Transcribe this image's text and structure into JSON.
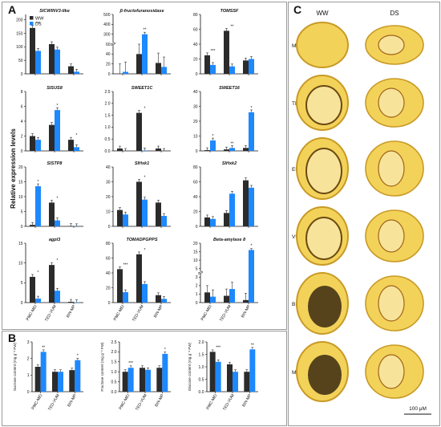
{
  "panel_labels": {
    "a": "A",
    "b": "B",
    "c": "C"
  },
  "legend": {
    "ww": "WW",
    "ds": "DS"
  },
  "colors": {
    "ww": "#2b2b2b",
    "ds": "#1e88ff",
    "tissue_dark": "#3a2a10",
    "tissue_mid": "#c89a25",
    "tissue_light": "#f3d25a",
    "tissue_pale": "#f7e49a"
  },
  "panel_a_ylabel": "Relative expression levels",
  "categories": [
    "PMC-MEI",
    "TED-VUM",
    "BIN-MP"
  ],
  "chart_data": [
    {
      "type": "bar",
      "title": "SlCWINV3-like",
      "categories": [
        "PMC-MEI",
        "TED-VUM",
        "BIN-MP"
      ],
      "series": [
        {
          "name": "WW",
          "values": [
            170,
            110,
            28
          ]
        },
        {
          "name": "DS",
          "values": [
            85,
            90,
            8
          ]
        }
      ],
      "ylim": [
        0,
        220
      ],
      "yticks": [
        0,
        50,
        100,
        150,
        200
      ],
      "sig": [
        "***",
        "",
        ""
      ]
    },
    {
      "type": "bar",
      "title": "β-fructofuranosidase",
      "categories": [
        "PMC-MEI",
        "TED-VUM",
        "BIN-MP"
      ],
      "series": [
        {
          "name": "WW",
          "values": [
            0,
            40,
            22
          ]
        },
        {
          "name": "DS",
          "values": [
            4,
            300,
            14
          ]
        }
      ],
      "ylim": [
        0,
        500
      ],
      "yticks": [
        0,
        20,
        40,
        60,
        300,
        400,
        500
      ],
      "broken_axis": true,
      "sig": [
        "",
        "**",
        ""
      ]
    },
    {
      "type": "bar",
      "title": "TOMSSF",
      "categories": [
        "PMC-MEI",
        "TED-VUM",
        "BIN-MP"
      ],
      "series": [
        {
          "name": "WW",
          "values": [
            25,
            58,
            18
          ]
        },
        {
          "name": "DS",
          "values": [
            12,
            10,
            20
          ]
        }
      ],
      "ylim": [
        0,
        80
      ],
      "yticks": [
        0,
        20,
        40,
        60,
        80
      ],
      "sig": [
        "***",
        "**",
        ""
      ]
    },
    {
      "type": "bar",
      "title": "SlSUS8",
      "categories": [
        "PMC-MEI",
        "TED-VUM",
        "BIN-MP"
      ],
      "series": [
        {
          "name": "WW",
          "values": [
            2.0,
            3.5,
            1.5
          ]
        },
        {
          "name": "DS",
          "values": [
            1.5,
            5.5,
            0.5
          ]
        }
      ],
      "ylim": [
        0,
        8
      ],
      "yticks": [
        0,
        2,
        4,
        6,
        8
      ],
      "sig": [
        "",
        "*",
        "*"
      ]
    },
    {
      "type": "bar",
      "title": "SWEET1C",
      "categories": [
        "PMC-MEI",
        "TED-VUM",
        "BIN-MP"
      ],
      "series": [
        {
          "name": "WW",
          "values": [
            0.1,
            1.6,
            0.1
          ]
        },
        {
          "name": "DS",
          "values": [
            0.0,
            0.02,
            0.0
          ]
        }
      ],
      "ylim": [
        0,
        2.5
      ],
      "yticks": [
        0.0,
        0.5,
        1.0,
        1.5,
        2.0,
        2.5
      ],
      "sig": [
        "",
        "*",
        ""
      ]
    },
    {
      "type": "bar",
      "title": "SWEET16",
      "categories": [
        "PMC-MEI",
        "TED-VUM",
        "BIN-MP"
      ],
      "series": [
        {
          "name": "WW",
          "values": [
            0.5,
            1.0,
            2.0
          ]
        },
        {
          "name": "DS",
          "values": [
            7.0,
            2.0,
            26.0
          ]
        }
      ],
      "ylim": [
        0,
        40
      ],
      "yticks": [
        0,
        10,
        20,
        30,
        40
      ],
      "sig": [
        "*",
        "**",
        "*"
      ]
    },
    {
      "type": "bar",
      "title": "SlSTP8",
      "categories": [
        "PMC-MEI",
        "TED-VUM",
        "BIN-MP"
      ],
      "series": [
        {
          "name": "WW",
          "values": [
            0.5,
            8.0,
            0.1
          ]
        },
        {
          "name": "DS",
          "values": [
            13.5,
            2.0,
            0.05
          ]
        }
      ],
      "ylim": [
        0,
        20
      ],
      "yticks": [
        0,
        5,
        10,
        15,
        20
      ],
      "sig": [
        "*",
        "*",
        ""
      ]
    },
    {
      "type": "bar",
      "title": "SlHxk1",
      "categories": [
        "PMC-MEI",
        "TED-VUM",
        "BIN-MP"
      ],
      "series": [
        {
          "name": "WW",
          "values": [
            11,
            30,
            16
          ]
        },
        {
          "name": "DS",
          "values": [
            8,
            18,
            7
          ]
        }
      ],
      "ylim": [
        0,
        40
      ],
      "yticks": [
        0,
        10,
        20,
        30,
        40
      ],
      "sig": [
        "",
        "*",
        ""
      ]
    },
    {
      "type": "bar",
      "title": "SlHxk2",
      "categories": [
        "PMC-MEI",
        "TED-VUM",
        "BIN-MP"
      ],
      "series": [
        {
          "name": "WW",
          "values": [
            12,
            18,
            62
          ]
        },
        {
          "name": "DS",
          "values": [
            10,
            44,
            52
          ]
        }
      ],
      "ylim": [
        0,
        80
      ],
      "yticks": [
        0,
        20,
        40,
        60,
        80
      ],
      "sig": [
        "",
        "",
        ""
      ]
    },
    {
      "type": "bar",
      "title": "agpl3",
      "categories": [
        "PMC-MEI",
        "TED-VUM",
        "BIN-MP"
      ],
      "series": [
        {
          "name": "WW",
          "values": [
            6.5,
            9.5,
            0.2
          ]
        },
        {
          "name": "DS",
          "values": [
            1.0,
            3.0,
            0.1
          ]
        }
      ],
      "ylim": [
        0,
        15
      ],
      "yticks": [
        0,
        5,
        10,
        15
      ],
      "sig": [
        "*",
        "*",
        ""
      ]
    },
    {
      "type": "bar",
      "title": "TOMADPGPPS",
      "categories": [
        "PMC-MEI",
        "TED-VUM",
        "BIN-MP"
      ],
      "series": [
        {
          "name": "WW",
          "values": [
            45,
            65,
            10
          ]
        },
        {
          "name": "DS",
          "values": [
            14,
            25,
            5
          ]
        }
      ],
      "ylim": [
        0,
        80
      ],
      "yticks": [
        0,
        20,
        40,
        60,
        80
      ],
      "sig": [
        "***",
        "*",
        ""
      ]
    },
    {
      "type": "bar",
      "title": "Beta-amylase 8",
      "categories": [
        "PMC-MEI",
        "TED-VUM",
        "BIN-MP"
      ],
      "series": [
        {
          "name": "WW",
          "values": [
            1.2,
            0.8,
            0.3
          ]
        },
        {
          "name": "DS",
          "values": [
            0.7,
            1.6,
            16.0
          ]
        }
      ],
      "ylim": [
        0,
        20
      ],
      "yticks": [
        0,
        1,
        2,
        3,
        5,
        10,
        15,
        20
      ],
      "broken_axis": true,
      "sig": [
        "",
        "",
        "*"
      ]
    },
    {
      "type": "bar",
      "title": "",
      "ylabel": "Sucrose content (mg g⁻¹ FW)",
      "categories": [
        "PMC-MEI",
        "TED-VUM",
        "BIN-MP"
      ],
      "series": [
        {
          "name": "WW",
          "values": [
            1.5,
            1.2,
            1.3
          ]
        },
        {
          "name": "DS",
          "values": [
            2.4,
            1.2,
            1.9
          ]
        }
      ],
      "ylim": [
        0,
        3
      ],
      "yticks": [
        0,
        1,
        2,
        3
      ],
      "sig": [
        "**",
        "",
        "*"
      ]
    },
    {
      "type": "bar",
      "title": "",
      "ylabel": "Fructose content (mg g⁻¹ FW)",
      "categories": [
        "PMC-MEI",
        "TED-VUM",
        "BIN-MP"
      ],
      "series": [
        {
          "name": "WW",
          "values": [
            1.0,
            1.2,
            1.2
          ]
        },
        {
          "name": "DS",
          "values": [
            1.2,
            1.1,
            1.9
          ]
        }
      ],
      "ylim": [
        0,
        2.5
      ],
      "yticks": [
        0.0,
        0.5,
        1.0,
        1.5,
        2.0,
        2.5
      ],
      "sig": [
        "***",
        "",
        "*"
      ]
    },
    {
      "type": "bar",
      "title": "",
      "ylabel": "Glucose content (mg g⁻¹ FW)",
      "categories": [
        "PMC-MEI",
        "TED-VUM",
        "BIN-MP"
      ],
      "series": [
        {
          "name": "WW",
          "values": [
            1.6,
            1.1,
            0.8
          ]
        },
        {
          "name": "DS",
          "values": [
            1.2,
            0.8,
            1.7
          ]
        }
      ],
      "ylim": [
        0,
        2
      ],
      "yticks": [
        0.0,
        0.5,
        1.0,
        1.5,
        2.0
      ],
      "sig": [
        "***",
        "",
        "**"
      ]
    }
  ],
  "micrographs": {
    "column_labels": [
      "WW",
      "DS"
    ],
    "row_labels": [
      "MEI",
      "TED",
      "EUM",
      "VUM",
      "BIN",
      "MP"
    ],
    "scale_bar": "100 μM"
  }
}
